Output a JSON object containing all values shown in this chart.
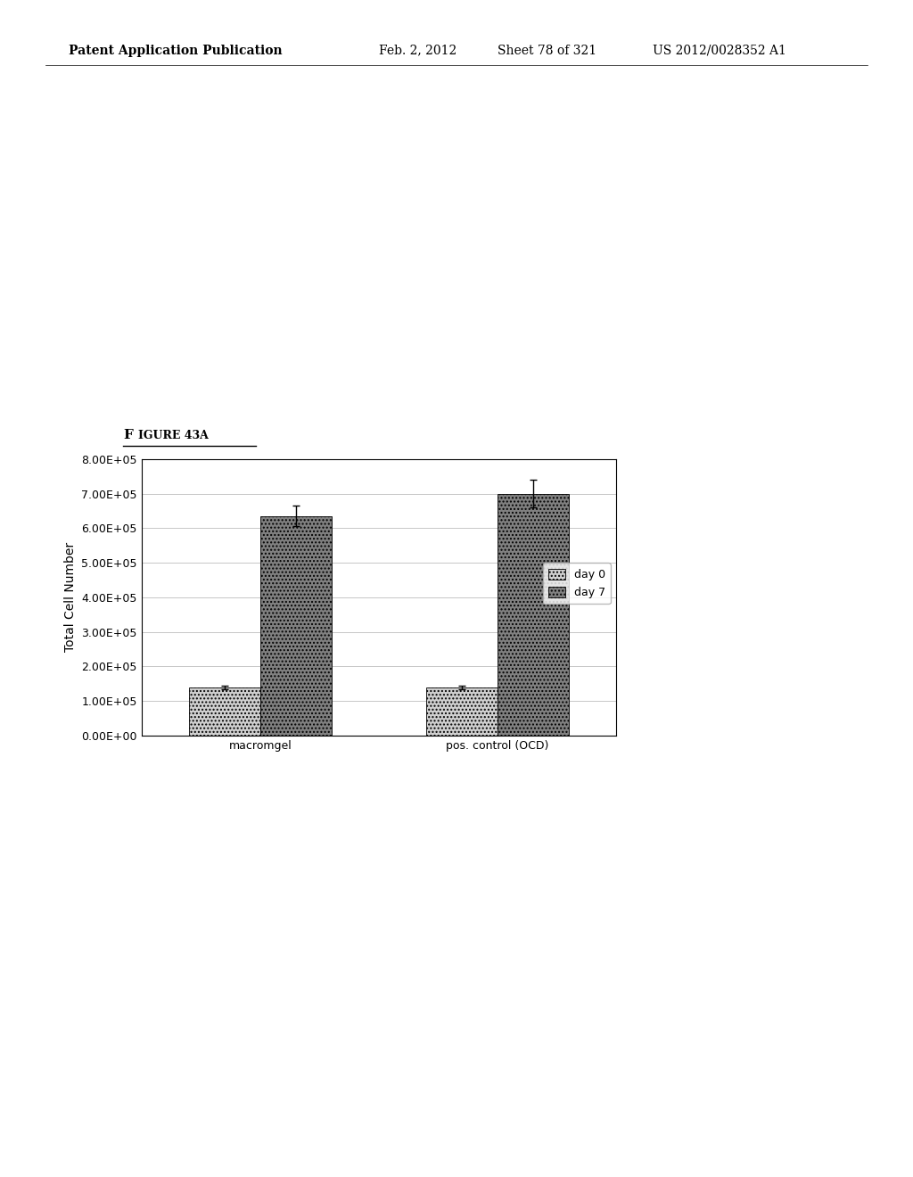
{
  "title": "FIGURE 43A",
  "ylabel": "Total Cell Number",
  "xlabel": "",
  "categories": [
    "macromgel",
    "pos. control (OCD)"
  ],
  "day0_values": [
    140000,
    140000
  ],
  "day7_values": [
    635000,
    700000
  ],
  "day0_errors": [
    5000,
    5000
  ],
  "day7_errors": [
    30000,
    40000
  ],
  "day0_color": "#d0d0d0",
  "day7_color": "#808080",
  "ylim": [
    0,
    800000
  ],
  "yticks": [
    0,
    100000,
    200000,
    300000,
    400000,
    500000,
    600000,
    700000,
    800000
  ],
  "ytick_labels": [
    "0.00E+00",
    "1.00E+05",
    "2.00E+05",
    "3.00E+05",
    "4.00E+05",
    "5.00E+05",
    "6.00E+05",
    "7.00E+05",
    "8.00E+05"
  ],
  "legend_labels": [
    "day 0",
    "day 7"
  ],
  "bar_width": 0.3,
  "background_color": "#ffffff",
  "plot_bg_color": "#ffffff",
  "tick_fontsize": 9,
  "axis_label_fontsize": 10,
  "legend_fontsize": 9
}
